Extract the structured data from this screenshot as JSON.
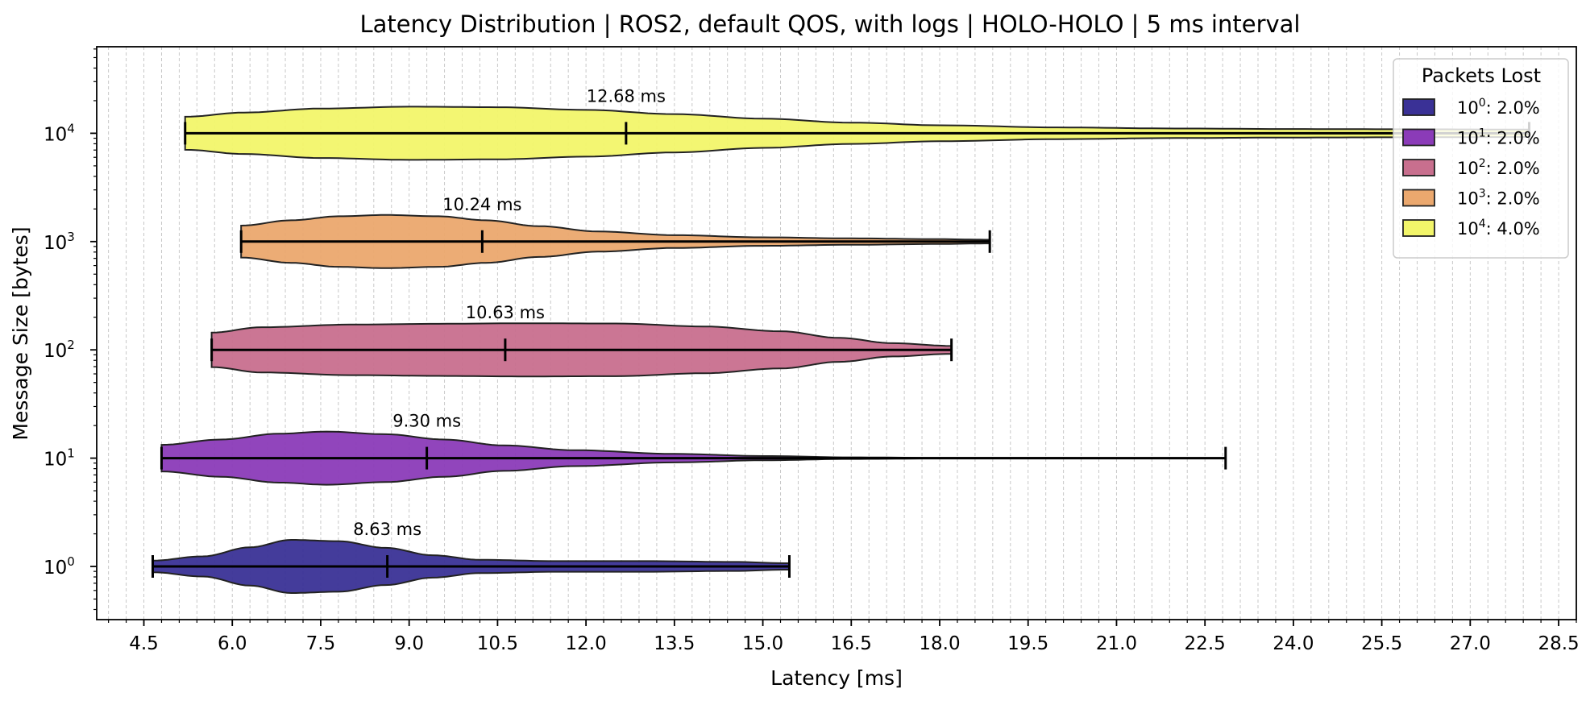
{
  "chart_data": {
    "type": "violin",
    "title": "Latency Distribution | ROS2, default QOS, with logs | HOLO-HOLO | 5 ms interval",
    "xlabel": "Latency [ms]",
    "ylabel": "Message Size [bytes]",
    "xlim": [
      3.7,
      28.8
    ],
    "yscale": "log",
    "xticks": [
      "4.5",
      "6.0",
      "7.5",
      "9.0",
      "10.5",
      "12.0",
      "13.5",
      "15.0",
      "16.5",
      "18.0",
      "19.5",
      "21.0",
      "22.5",
      "24.0",
      "25.5",
      "27.0",
      "28.5"
    ],
    "grid": "vertical dashed",
    "legend": {
      "title": "Packets Lost",
      "placement": "top-right"
    },
    "series": [
      {
        "label_base": "10",
        "label_exp": "0",
        "legend_value": ": 2.0%",
        "message_size": 1,
        "color": "#3a3196",
        "min": 4.65,
        "max": 15.45,
        "median": 8.63,
        "median_label": "8.63 ms",
        "profile": [
          [
            4.65,
            0.22
          ],
          [
            5.5,
            0.38
          ],
          [
            6.3,
            0.72
          ],
          [
            7.0,
            1.0
          ],
          [
            7.8,
            0.95
          ],
          [
            8.6,
            0.7
          ],
          [
            9.4,
            0.42
          ],
          [
            10.2,
            0.25
          ],
          [
            11.5,
            0.2
          ],
          [
            13.0,
            0.2
          ],
          [
            14.5,
            0.17
          ],
          [
            15.45,
            0.12
          ]
        ]
      },
      {
        "label_base": "10",
        "label_exp": "1",
        "legend_value": ": 2.0%",
        "message_size": 10,
        "color": "#8b3bb8",
        "min": 4.8,
        "max": 22.85,
        "median": 9.3,
        "median_label": "9.30 ms",
        "profile": [
          [
            4.8,
            0.5
          ],
          [
            5.8,
            0.7
          ],
          [
            6.8,
            0.92
          ],
          [
            7.6,
            1.0
          ],
          [
            8.6,
            0.9
          ],
          [
            9.6,
            0.7
          ],
          [
            10.6,
            0.48
          ],
          [
            11.8,
            0.3
          ],
          [
            13.5,
            0.16
          ],
          [
            15.0,
            0.08
          ],
          [
            16.5,
            0.03
          ],
          [
            18.0,
            0.01
          ],
          [
            22.85,
            0.005
          ]
        ]
      },
      {
        "label_base": "10",
        "label_exp": "2",
        "legend_value": ": 2.0%",
        "message_size": 100,
        "color": "#c86f8e",
        "min": 5.65,
        "max": 18.2,
        "median": 10.63,
        "median_label": "10.63 ms",
        "profile": [
          [
            5.65,
            0.65
          ],
          [
            6.5,
            0.85
          ],
          [
            8.0,
            0.95
          ],
          [
            9.5,
            0.98
          ],
          [
            11.0,
            1.0
          ],
          [
            12.5,
            0.99
          ],
          [
            14.0,
            0.88
          ],
          [
            15.3,
            0.7
          ],
          [
            16.3,
            0.45
          ],
          [
            17.2,
            0.25
          ],
          [
            18.2,
            0.15
          ]
        ]
      },
      {
        "label_base": "10",
        "label_exp": "3",
        "legend_value": ": 2.0%",
        "message_size": 1000,
        "color": "#eba86e",
        "min": 6.15,
        "max": 18.85,
        "median": 10.24,
        "median_label": "10.24 ms",
        "profile": [
          [
            6.15,
            0.6
          ],
          [
            7.0,
            0.8
          ],
          [
            7.8,
            0.95
          ],
          [
            8.6,
            1.0
          ],
          [
            9.5,
            0.95
          ],
          [
            10.3,
            0.8
          ],
          [
            11.2,
            0.58
          ],
          [
            12.2,
            0.38
          ],
          [
            13.5,
            0.24
          ],
          [
            15.0,
            0.16
          ],
          [
            16.5,
            0.12
          ],
          [
            18.0,
            0.09
          ],
          [
            18.85,
            0.07
          ]
        ]
      },
      {
        "label_base": "10",
        "label_exp": "4",
        "legend_value": ": 4.0%",
        "message_size": 10000,
        "color": "#f2f56a",
        "min": 5.2,
        "max": 28.0,
        "median": 12.68,
        "median_label": "12.68 ms",
        "profile": [
          [
            5.2,
            0.62
          ],
          [
            6.2,
            0.78
          ],
          [
            7.5,
            0.93
          ],
          [
            9.0,
            1.0
          ],
          [
            10.5,
            0.98
          ],
          [
            12.0,
            0.88
          ],
          [
            13.5,
            0.72
          ],
          [
            15.0,
            0.55
          ],
          [
            16.5,
            0.4
          ],
          [
            18.0,
            0.3
          ],
          [
            20.0,
            0.22
          ],
          [
            22.0,
            0.18
          ],
          [
            24.0,
            0.16
          ],
          [
            26.0,
            0.15
          ],
          [
            28.0,
            0.14
          ]
        ]
      }
    ]
  }
}
